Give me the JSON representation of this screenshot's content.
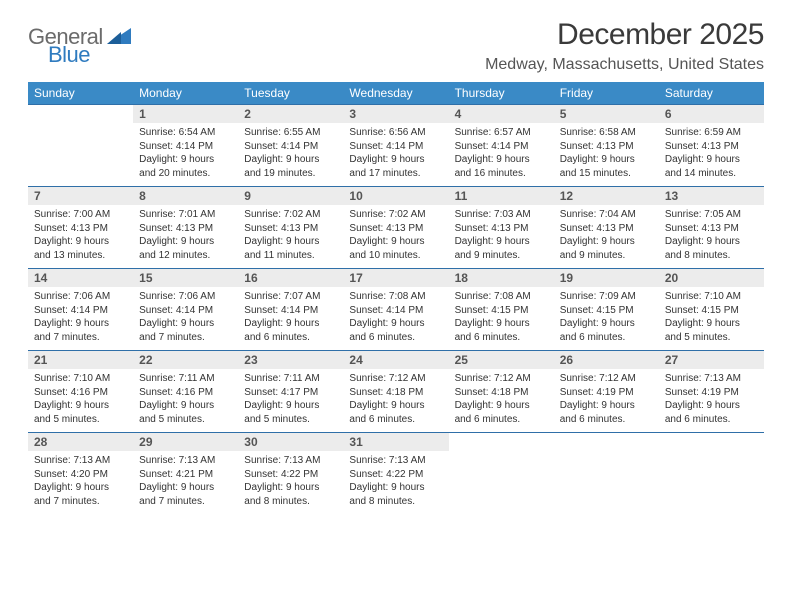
{
  "logo": {
    "word1": "General",
    "word2": "Blue"
  },
  "title": "December 2025",
  "location": "Medway, Massachusetts, United States",
  "colors": {
    "header_bg": "#3a8ac6",
    "rule": "#2f6fa8",
    "daynum_bg": "#ececec",
    "text": "#333333",
    "logo_gray": "#6b6b6b",
    "logo_blue": "#2f7bbf"
  },
  "day_headers": [
    "Sunday",
    "Monday",
    "Tuesday",
    "Wednesday",
    "Thursday",
    "Friday",
    "Saturday"
  ],
  "weeks": [
    [
      null,
      {
        "n": "1",
        "sr": "6:54 AM",
        "ss": "4:14 PM",
        "dl": "9 hours and 20 minutes."
      },
      {
        "n": "2",
        "sr": "6:55 AM",
        "ss": "4:14 PM",
        "dl": "9 hours and 19 minutes."
      },
      {
        "n": "3",
        "sr": "6:56 AM",
        "ss": "4:14 PM",
        "dl": "9 hours and 17 minutes."
      },
      {
        "n": "4",
        "sr": "6:57 AM",
        "ss": "4:14 PM",
        "dl": "9 hours and 16 minutes."
      },
      {
        "n": "5",
        "sr": "6:58 AM",
        "ss": "4:13 PM",
        "dl": "9 hours and 15 minutes."
      },
      {
        "n": "6",
        "sr": "6:59 AM",
        "ss": "4:13 PM",
        "dl": "9 hours and 14 minutes."
      }
    ],
    [
      {
        "n": "7",
        "sr": "7:00 AM",
        "ss": "4:13 PM",
        "dl": "9 hours and 13 minutes."
      },
      {
        "n": "8",
        "sr": "7:01 AM",
        "ss": "4:13 PM",
        "dl": "9 hours and 12 minutes."
      },
      {
        "n": "9",
        "sr": "7:02 AM",
        "ss": "4:13 PM",
        "dl": "9 hours and 11 minutes."
      },
      {
        "n": "10",
        "sr": "7:02 AM",
        "ss": "4:13 PM",
        "dl": "9 hours and 10 minutes."
      },
      {
        "n": "11",
        "sr": "7:03 AM",
        "ss": "4:13 PM",
        "dl": "9 hours and 9 minutes."
      },
      {
        "n": "12",
        "sr": "7:04 AM",
        "ss": "4:13 PM",
        "dl": "9 hours and 9 minutes."
      },
      {
        "n": "13",
        "sr": "7:05 AM",
        "ss": "4:13 PM",
        "dl": "9 hours and 8 minutes."
      }
    ],
    [
      {
        "n": "14",
        "sr": "7:06 AM",
        "ss": "4:14 PM",
        "dl": "9 hours and 7 minutes."
      },
      {
        "n": "15",
        "sr": "7:06 AM",
        "ss": "4:14 PM",
        "dl": "9 hours and 7 minutes."
      },
      {
        "n": "16",
        "sr": "7:07 AM",
        "ss": "4:14 PM",
        "dl": "9 hours and 6 minutes."
      },
      {
        "n": "17",
        "sr": "7:08 AM",
        "ss": "4:14 PM",
        "dl": "9 hours and 6 minutes."
      },
      {
        "n": "18",
        "sr": "7:08 AM",
        "ss": "4:15 PM",
        "dl": "9 hours and 6 minutes."
      },
      {
        "n": "19",
        "sr": "7:09 AM",
        "ss": "4:15 PM",
        "dl": "9 hours and 6 minutes."
      },
      {
        "n": "20",
        "sr": "7:10 AM",
        "ss": "4:15 PM",
        "dl": "9 hours and 5 minutes."
      }
    ],
    [
      {
        "n": "21",
        "sr": "7:10 AM",
        "ss": "4:16 PM",
        "dl": "9 hours and 5 minutes."
      },
      {
        "n": "22",
        "sr": "7:11 AM",
        "ss": "4:16 PM",
        "dl": "9 hours and 5 minutes."
      },
      {
        "n": "23",
        "sr": "7:11 AM",
        "ss": "4:17 PM",
        "dl": "9 hours and 5 minutes."
      },
      {
        "n": "24",
        "sr": "7:12 AM",
        "ss": "4:18 PM",
        "dl": "9 hours and 6 minutes."
      },
      {
        "n": "25",
        "sr": "7:12 AM",
        "ss": "4:18 PM",
        "dl": "9 hours and 6 minutes."
      },
      {
        "n": "26",
        "sr": "7:12 AM",
        "ss": "4:19 PM",
        "dl": "9 hours and 6 minutes."
      },
      {
        "n": "27",
        "sr": "7:13 AM",
        "ss": "4:19 PM",
        "dl": "9 hours and 6 minutes."
      }
    ],
    [
      {
        "n": "28",
        "sr": "7:13 AM",
        "ss": "4:20 PM",
        "dl": "9 hours and 7 minutes."
      },
      {
        "n": "29",
        "sr": "7:13 AM",
        "ss": "4:21 PM",
        "dl": "9 hours and 7 minutes."
      },
      {
        "n": "30",
        "sr": "7:13 AM",
        "ss": "4:22 PM",
        "dl": "9 hours and 8 minutes."
      },
      {
        "n": "31",
        "sr": "7:13 AM",
        "ss": "4:22 PM",
        "dl": "9 hours and 8 minutes."
      },
      null,
      null,
      null
    ]
  ],
  "labels": {
    "sunrise_prefix": "Sunrise: ",
    "sunset_prefix": "Sunset: ",
    "daylight_prefix": "Daylight: "
  }
}
